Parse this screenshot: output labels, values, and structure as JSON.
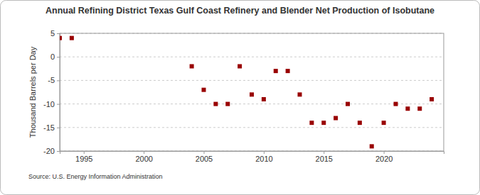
{
  "chart_data": {
    "type": "scatter",
    "title": "Annual Refining District Texas Gulf Coast Refinery and Blender Net Production of Isobutane",
    "y_label": "Thousand Barrels per Day",
    "source": "Source: U.S. Energy Information Administration",
    "x": [
      1993,
      1994,
      2004,
      2005,
      2006,
      2007,
      2008,
      2009,
      2010,
      2011,
      2012,
      2013,
      2014,
      2015,
      2016,
      2017,
      2018,
      2019,
      2020,
      2021,
      2022,
      2023,
      2024
    ],
    "values": [
      4,
      4,
      -2,
      -7,
      -10,
      -10,
      -2,
      -8,
      -9,
      -3,
      -3,
      -8,
      -14,
      -14,
      -13,
      -10,
      -14,
      -19,
      -14,
      -10,
      -11,
      -11,
      -9
    ],
    "color": "#990000",
    "marker": "square",
    "xlim": [
      1993,
      2025
    ],
    "xticks": [
      1995,
      2000,
      2005,
      2010,
      2015,
      2020
    ],
    "ylim": [
      -20,
      5
    ],
    "yticks": [
      5,
      0,
      -5,
      -10,
      -15,
      -20
    ],
    "grid": true
  }
}
